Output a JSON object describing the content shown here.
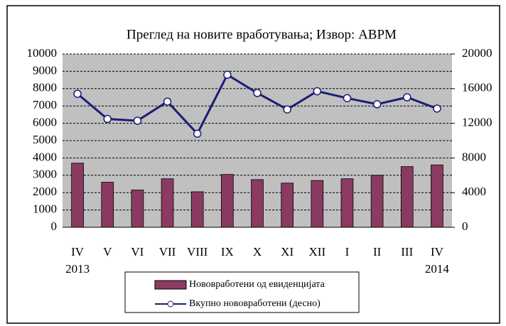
{
  "chart_data": {
    "type": "combo",
    "title": "Преглед на новите вработувања; Извор: АВРМ",
    "categories": [
      "IV",
      "V",
      "VI",
      "VII",
      "VIII",
      "IX",
      "X",
      "XI",
      "XII",
      "I",
      "II",
      "III",
      "IV"
    ],
    "annotations": [
      "2013",
      "2014"
    ],
    "series": [
      {
        "name": "Нововработени од евиденцијата",
        "type": "bar",
        "color": "#8b3a62",
        "values": [
          3700,
          2600,
          2150,
          2800,
          2050,
          3050,
          2750,
          2550,
          2700,
          2800,
          3000,
          3500,
          3600
        ]
      },
      {
        "name": "Вкупно нововработени (десно)",
        "type": "line",
        "axis": "y2",
        "color": "#1c1c78",
        "values": [
          15400,
          12500,
          12300,
          14500,
          10800,
          17600,
          15500,
          13600,
          15700,
          14900,
          14200,
          15000,
          13700
        ]
      }
    ],
    "ylim": [
      0,
      10000
    ],
    "yticks": [
      0,
      1000,
      2000,
      3000,
      4000,
      5000,
      6000,
      7000,
      8000,
      9000,
      10000
    ],
    "y2lim": [
      0,
      20000
    ],
    "y2ticks": [
      0,
      4000,
      8000,
      12000,
      16000,
      20000
    ],
    "grid": true,
    "legend": "bottom"
  }
}
